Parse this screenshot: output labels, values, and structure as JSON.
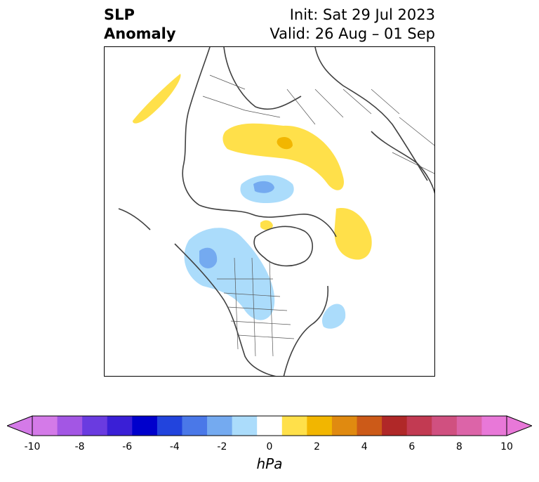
{
  "title": {
    "left_line1": "SLP",
    "left_line2": "Anomaly",
    "right_line1": "Init: Sat 29 Jul 2023",
    "right_line2": "Valid: 26 Aug – 01 Sep"
  },
  "colorbar": {
    "unit": "hPa",
    "ticks": [
      "-10",
      "-8",
      "-6",
      "-4",
      "-2",
      "0",
      "2",
      "4",
      "6",
      "8",
      "10"
    ],
    "colors": [
      "#d47ae8",
      "#a356e4",
      "#6a3be0",
      "#3a1fd6",
      "#0000cc",
      "#2244dd",
      "#4a78e8",
      "#74aaf0",
      "#abdcfb",
      "#ffffff",
      "#ffe04a",
      "#f2b600",
      "#e08a10",
      "#cc5a18",
      "#b02828",
      "#c23a52",
      "#d05080",
      "#dc64a8",
      "#e878d8"
    ],
    "extend_low": "#d47ae8",
    "extend_high": "#e878d8"
  }
}
